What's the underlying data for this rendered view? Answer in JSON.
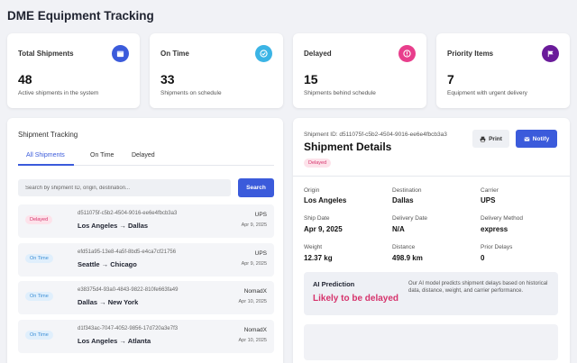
{
  "app": {
    "title": "DME Equipment Tracking"
  },
  "colors": {
    "accent": "#3b5bdb",
    "delayed": "#d6336c",
    "on_time": "#3d8fd6"
  },
  "stats": [
    {
      "label": "Total Shipments",
      "value": "48",
      "sub": "Active shipments in the system",
      "icon": "box-icon",
      "color": "#3b5bdb"
    },
    {
      "label": "On Time",
      "value": "33",
      "sub": "Shipments on schedule",
      "icon": "check-circle-icon",
      "color": "#3bb4e5"
    },
    {
      "label": "Delayed",
      "value": "15",
      "sub": "Shipments behind schedule",
      "icon": "alert-icon",
      "color": "#e83e8c"
    },
    {
      "label": "Priority Items",
      "value": "7",
      "sub": "Equipment with urgent delivery",
      "icon": "flag-icon",
      "color": "#6a1b9a"
    }
  ],
  "tracking": {
    "title": "Shipment Tracking",
    "tabs": [
      "All Shipments",
      "On Time",
      "Delayed"
    ],
    "search_placeholder": "Search by shipment ID, origin, destination...",
    "search_label": "Search",
    "rows": [
      {
        "status": "Delayed",
        "id": "d511075f-c5b2-4504-9016-ee6e4fbcb3a3",
        "route": "Los Angeles → Dallas",
        "carrier": "UPS",
        "date": "Apr 9, 2025"
      },
      {
        "status": "On Time",
        "id": "efd51a95-13e8-4a5f-8bd5-e4ca7cf21756",
        "route": "Seattle → Chicago",
        "carrier": "UPS",
        "date": "Apr 9, 2025"
      },
      {
        "status": "On Time",
        "id": "e38375d4-93a0-4843-9822-810fe663fa49",
        "route": "Dallas → New York",
        "carrier": "NomadX",
        "date": "Apr 10, 2025"
      },
      {
        "status": "On Time",
        "id": "d1f343ac-7047-4052-9856-17d720a3e7f3",
        "route": "Los Angeles → Atlanta",
        "carrier": "NomadX",
        "date": "Apr 10, 2025"
      }
    ]
  },
  "details": {
    "id_line": "Shipment ID: d511075f-c5b2-4504-9016-ee6e4fbcb3a3",
    "title": "Shipment Details",
    "status": "Delayed",
    "print_label": "Print",
    "notify_label": "Notify",
    "fields": [
      {
        "label": "Origin",
        "value": "Los Angeles"
      },
      {
        "label": "Destination",
        "value": "Dallas"
      },
      {
        "label": "Carrier",
        "value": "UPS"
      },
      {
        "label": "Ship Date",
        "value": "Apr 9, 2025"
      },
      {
        "label": "Delivery Date",
        "value": "N/A"
      },
      {
        "label": "Delivery Method",
        "value": "express"
      },
      {
        "label": "Weight",
        "value": "12.37 kg"
      },
      {
        "label": "Distance",
        "value": "498.9 km"
      },
      {
        "label": "Prior Delays",
        "value": "0"
      }
    ],
    "prediction": {
      "label": "AI Prediction",
      "value": "Likely to be delayed",
      "description": "Our AI model predicts shipment delays based on historical data, distance, weight, and carrier performance."
    }
  }
}
